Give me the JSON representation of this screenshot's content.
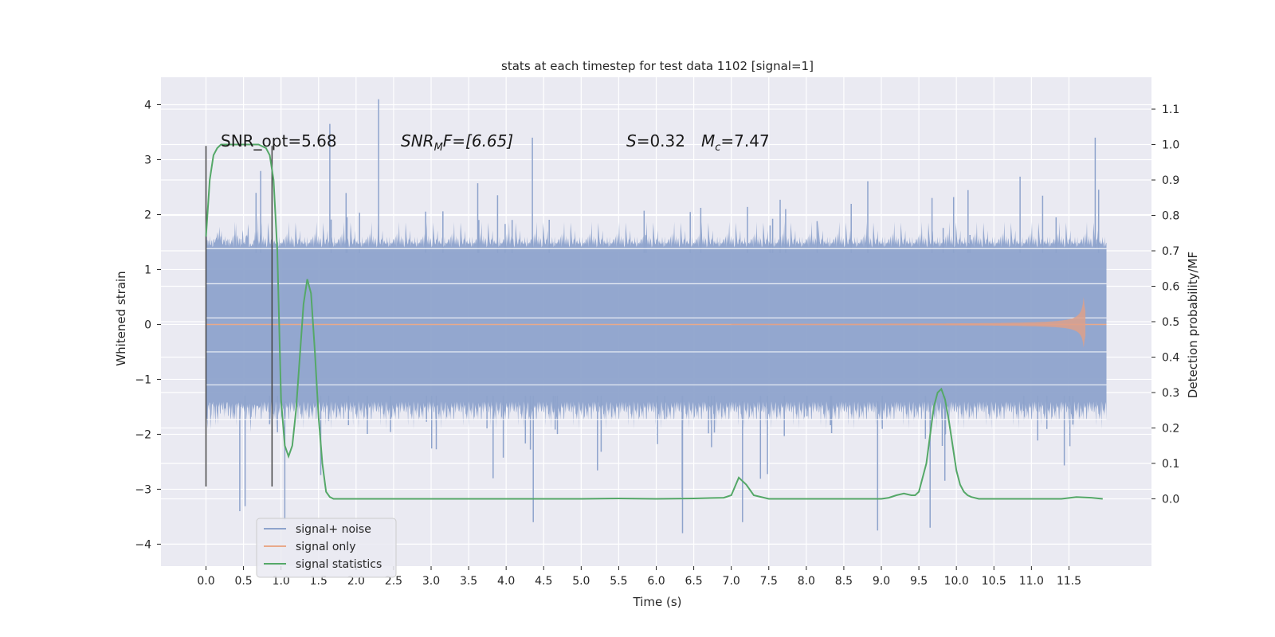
{
  "chart_data": {
    "type": "line",
    "title": "stats at each timestep for test data 1102 [signal=1]",
    "xlabel": "Time (s)",
    "ylabel_left": "Whitened strain",
    "ylabel_right": "Detection probability/MF",
    "xlim": [
      -0.6,
      12.6
    ],
    "ylim_left": [
      -4.4,
      4.5
    ],
    "ylim_right": [
      -0.19,
      1.19
    ],
    "x_ticks": [
      "0.0",
      "0.5",
      "1.0",
      "1.5",
      "2.0",
      "2.5",
      "3.0",
      "3.5",
      "4.0",
      "4.5",
      "5.0",
      "5.5",
      "6.0",
      "6.5",
      "7.0",
      "7.5",
      "8.0",
      "8.5",
      "9.0",
      "9.5",
      "10.0",
      "10.5",
      "11.0",
      "11.5"
    ],
    "y_ticks_left": [
      "4",
      "3",
      "2",
      "1",
      "0",
      "−1",
      "−2",
      "−3",
      "−4"
    ],
    "y_ticks_right": [
      "1.1",
      "1.0",
      "0.9",
      "0.8",
      "0.7",
      "0.6",
      "0.5",
      "0.4",
      "0.3",
      "0.2",
      "0.1",
      "0.0"
    ],
    "grid": true,
    "colors": {
      "background": "#EAEAF2",
      "grid": "#FFFFFF",
      "noise": "#8EA3CC",
      "signal": "#DD8452",
      "stats": "#55A868",
      "marker": "#444444"
    },
    "series": [
      {
        "name": "signal+ noise",
        "axis": "left",
        "kind": "noise-band",
        "x_range": [
          0.0,
          12.0
        ],
        "core_amplitude": 1.4,
        "typical_peak": 2.5,
        "max_peak": 4.1,
        "min_peak": -3.8
      },
      {
        "name": "signal only",
        "axis": "left",
        "kind": "chirp",
        "x_range": [
          0.0,
          12.0
        ],
        "start": 7.0,
        "peak_time": 11.7,
        "peak_amplitude": 0.75
      },
      {
        "name": "signal statistics",
        "axis": "right",
        "x": [
          0.0,
          0.05,
          0.1,
          0.15,
          0.2,
          0.3,
          0.5,
          0.7,
          0.8,
          0.85,
          0.9,
          0.95,
          1.0,
          1.05,
          1.1,
          1.15,
          1.2,
          1.3,
          1.35,
          1.4,
          1.45,
          1.5,
          1.55,
          1.6,
          1.65,
          1.7,
          1.8,
          2.0,
          3.0,
          4.0,
          5.0,
          5.5,
          6.0,
          6.5,
          6.9,
          7.0,
          7.1,
          7.2,
          7.3,
          7.5,
          8.0,
          9.0,
          9.1,
          9.2,
          9.3,
          9.4,
          9.45,
          9.5,
          9.6,
          9.7,
          9.75,
          9.8,
          9.85,
          9.9,
          9.95,
          10.0,
          10.05,
          10.1,
          10.15,
          10.2,
          10.3,
          10.5,
          11.0,
          11.4,
          11.6,
          11.8,
          11.95
        ],
        "y": [
          0.74,
          0.9,
          0.97,
          0.99,
          1.0,
          1.0,
          1.0,
          1.0,
          0.99,
          0.97,
          0.9,
          0.7,
          0.28,
          0.15,
          0.12,
          0.15,
          0.25,
          0.55,
          0.62,
          0.58,
          0.42,
          0.23,
          0.1,
          0.02,
          0.005,
          0.0,
          0.0,
          0.0,
          0.0,
          0.0,
          0.0,
          0.001,
          0.0,
          0.001,
          0.003,
          0.01,
          0.06,
          0.04,
          0.01,
          0.0,
          0.0,
          0.0,
          0.003,
          0.01,
          0.015,
          0.01,
          0.01,
          0.02,
          0.1,
          0.26,
          0.3,
          0.31,
          0.28,
          0.22,
          0.15,
          0.08,
          0.04,
          0.02,
          0.01,
          0.005,
          0.0,
          0.0,
          0.0,
          0.0,
          0.005,
          0.003,
          0.0
        ]
      }
    ],
    "vertical_markers": [
      0.0,
      0.88
    ],
    "annotations": {
      "snr_opt": "SNR_opt=5.68",
      "snr_mf_prefix": "SNR",
      "snr_mf_sub": "M",
      "snr_mf_suffix": "F=[6.65]",
      "s_var": "S",
      "s_value": "=0.32",
      "mc_var": "M",
      "mc_sub": "c",
      "mc_value": "=7.47"
    },
    "legend": {
      "position": "lower-left",
      "entries": [
        "signal+ noise",
        "signal only",
        "signal statistics"
      ]
    }
  }
}
